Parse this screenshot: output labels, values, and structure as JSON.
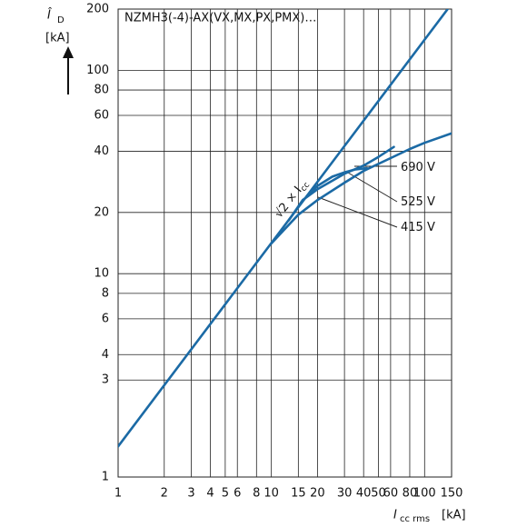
{
  "chart_data": {
    "type": "line",
    "title": "NZMH3(-4)-AX(VX,MX,PX,PMX)…",
    "ylabel": {
      "symbol": "Î",
      "sub": "D",
      "unit": "[kA]"
    },
    "xlabel": {
      "symbol": "I",
      "sub": "cc rms",
      "unit": "[kA]"
    },
    "log_x": true,
    "log_y": true,
    "grid": true,
    "xlim": [
      1,
      150
    ],
    "ylim": [
      1,
      200
    ],
    "xticks": [
      1,
      2,
      3,
      4,
      5,
      6,
      8,
      10,
      15,
      20,
      30,
      40,
      50,
      60,
      80,
      100,
      150
    ],
    "yticks": [
      1,
      3,
      4,
      6,
      8,
      10,
      20,
      40,
      60,
      80,
      100,
      200
    ],
    "series": [
      {
        "name": "√2 × I",
        "name_sub": "cc",
        "color": "#1b6aa5",
        "x": [
          1,
          141.4
        ],
        "values": [
          1.414,
          200
        ]
      },
      {
        "name": "415 V",
        "color": "#1b6aa5",
        "x": [
          10,
          15,
          20,
          30,
          40,
          60,
          80,
          100,
          150
        ],
        "values": [
          14.1,
          19.5,
          23,
          28,
          32,
          37,
          41,
          44,
          49
        ]
      },
      {
        "name": "525 V",
        "color": "#1b6aa5",
        "x": [
          13,
          16,
          20,
          30,
          40,
          50,
          63
        ],
        "values": [
          18.3,
          23,
          26,
          31,
          34,
          37.5,
          42
        ]
      },
      {
        "name": "690 V",
        "color": "#1b6aa5",
        "x": [
          17,
          20,
          25,
          30,
          35,
          42
        ],
        "values": [
          24,
          27,
          30,
          31.5,
          32.5,
          33
        ]
      }
    ]
  }
}
